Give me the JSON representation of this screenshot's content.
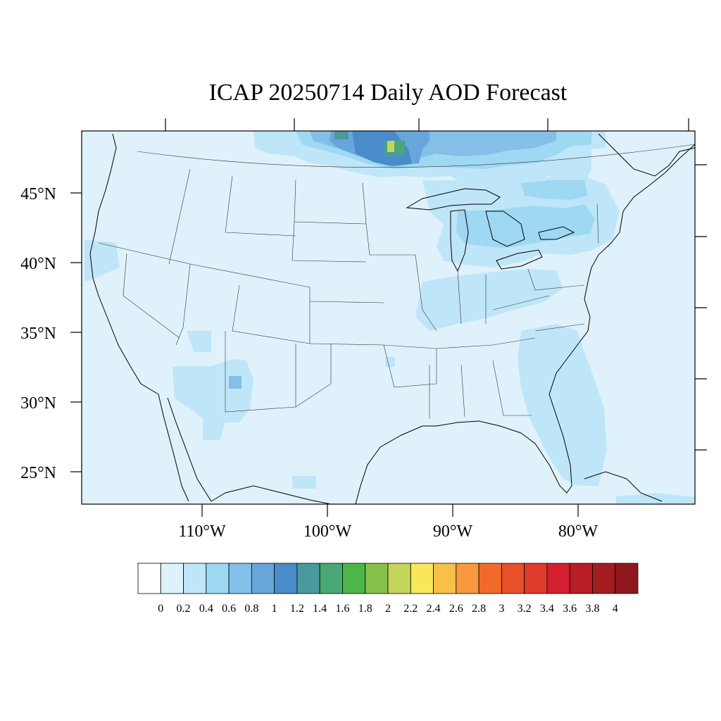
{
  "title": "ICAP 20250714 Daily AOD Forecast",
  "lat_labels": [
    "45°N",
    "40°N",
    "35°N",
    "30°N",
    "25°N"
  ],
  "lon_labels": [
    "110°W",
    "100°W",
    "90°W",
    "80°W"
  ],
  "colorbar": {
    "labels": [
      "0",
      "0.2",
      "0.4",
      "0.6",
      "0.8",
      "1",
      "1.2",
      "1.4",
      "1.6",
      "1.8",
      "2",
      "2.2",
      "2.4",
      "2.6",
      "2.8",
      "3",
      "3.2",
      "3.4",
      "3.6",
      "3.8",
      "4"
    ],
    "colors": [
      "#ffffff",
      "#dff2fb",
      "#bfe6f8",
      "#9fd8f3",
      "#83bfe7",
      "#67a6da",
      "#4a8bc9",
      "#4a9a9d",
      "#4aa876",
      "#4db649",
      "#86c24a",
      "#c3d65a",
      "#f8e75a",
      "#f8c04a",
      "#f6983b",
      "#f26a2a",
      "#e8502a",
      "#e03a2a",
      "#d32030",
      "#b81c24",
      "#a51c20",
      "#8e171b"
    ]
  },
  "background_level_color": "#dff2fb",
  "aod_field": [
    {
      "region": "southern-canada-smoke",
      "aod_range": "0.6-1.2"
    },
    {
      "region": "minnesota-ontario-hotspot",
      "aod_range": "2.2-2.4"
    },
    {
      "region": "northeast-us",
      "aod_range": "0.4-0.6"
    },
    {
      "region": "southeast-us-florida",
      "aod_range": "0.2-0.4"
    },
    {
      "region": "arizona-new-mexico",
      "aod_range": "0.2-0.6"
    }
  ]
}
